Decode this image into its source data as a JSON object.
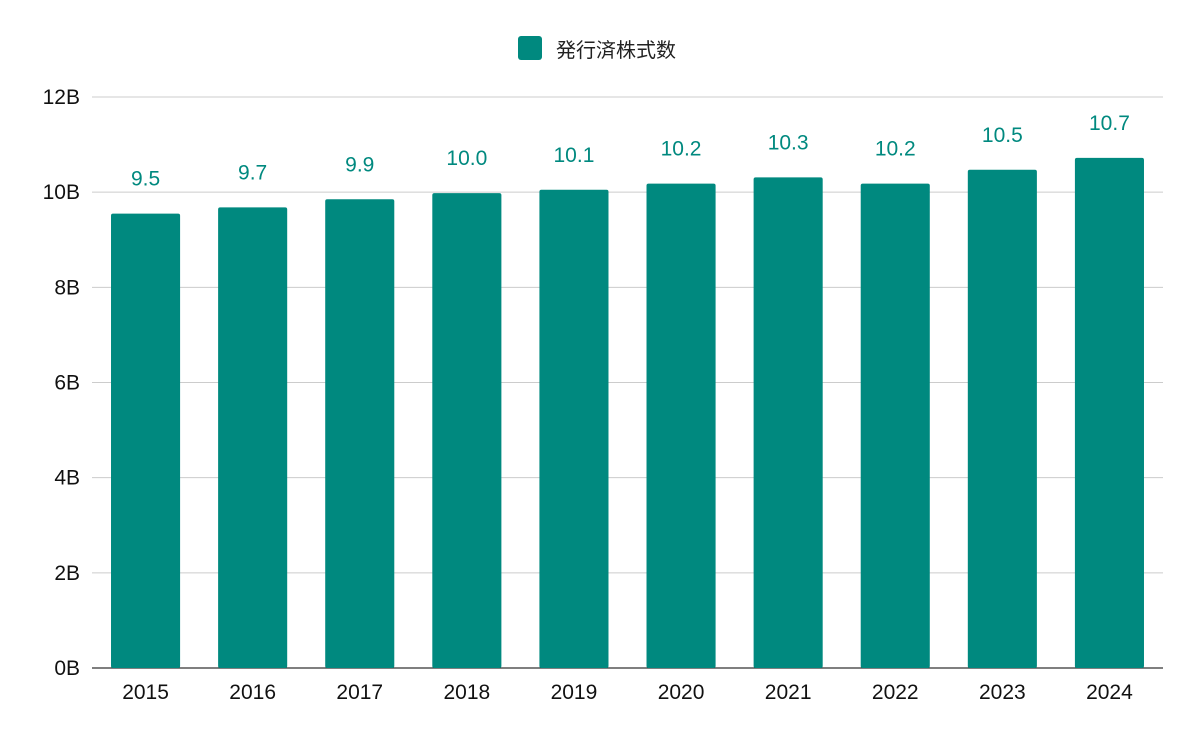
{
  "chart_data": {
    "type": "bar",
    "categories": [
      "2015",
      "2016",
      "2017",
      "2018",
      "2019",
      "2020",
      "2021",
      "2022",
      "2023",
      "2024"
    ],
    "series": [
      {
        "name": "発行済株式数",
        "values": [
          9.55,
          9.68,
          9.85,
          9.98,
          10.05,
          10.18,
          10.31,
          10.18,
          10.47,
          10.72
        ],
        "labels": [
          "9.5",
          "9.7",
          "9.9",
          "10.0",
          "10.1",
          "10.2",
          "10.3",
          "10.2",
          "10.5",
          "10.7"
        ],
        "color": "#00897f"
      }
    ],
    "ylim": [
      0,
      12
    ],
    "yticks": [
      0,
      2,
      4,
      6,
      8,
      10,
      12
    ],
    "ytick_labels": [
      "0B",
      "2B",
      "4B",
      "6B",
      "8B",
      "10B",
      "12B"
    ],
    "grid": true,
    "legend_position": "top-center",
    "gridline_color": "#cccccc"
  }
}
